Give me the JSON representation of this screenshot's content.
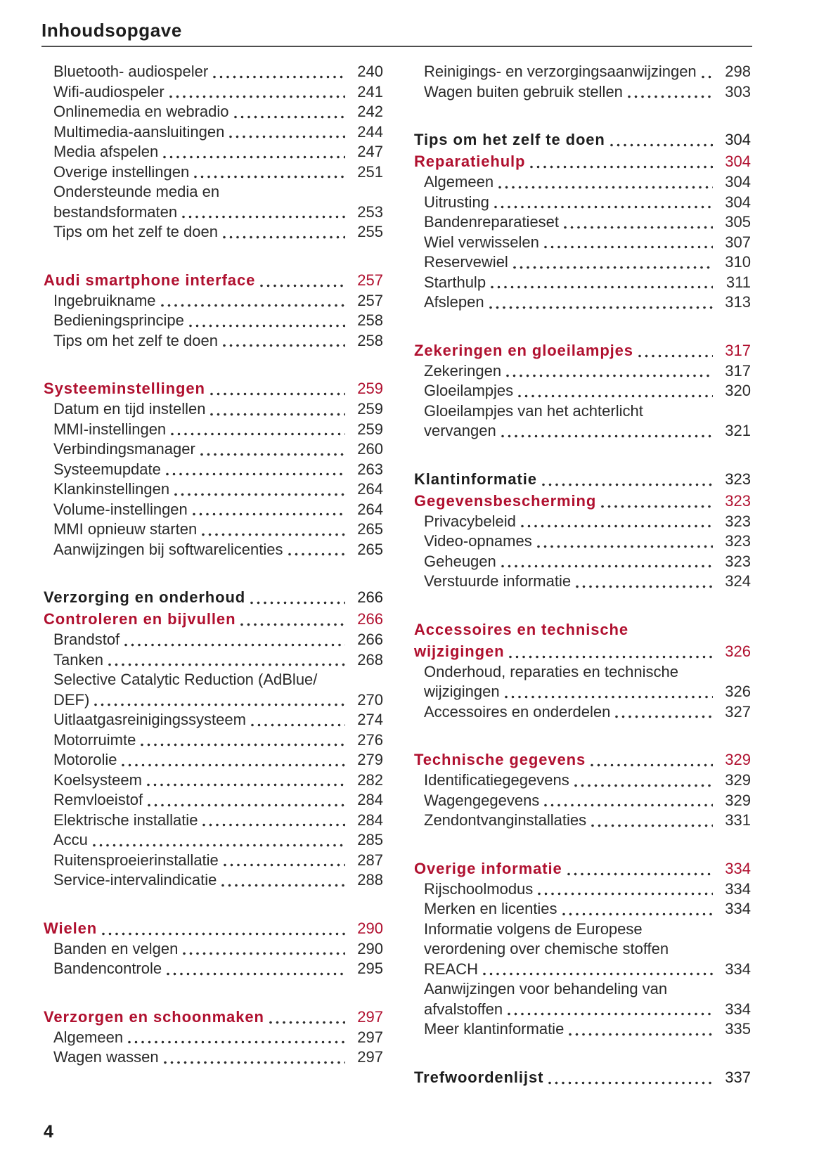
{
  "page": {
    "title": "Inhoudsopgave",
    "page_number": "4"
  },
  "colors": {
    "accent_red": "#B0102F",
    "body_text": "#2a2a2a",
    "heading_black": "#1d1d1d",
    "rule": "#4e4e4e"
  },
  "toc": {
    "left_column": [
      {
        "entries": [
          {
            "style": "sub",
            "lines": [
              "Bluetooth- audiospeler"
            ],
            "page": "240"
          },
          {
            "style": "sub",
            "lines": [
              "Wifi-audiospeler"
            ],
            "page": "241"
          },
          {
            "style": "sub",
            "lines": [
              "Onlinemedia en webradio"
            ],
            "page": "242"
          },
          {
            "style": "sub",
            "lines": [
              "Multimedia-aansluitingen"
            ],
            "page": "244"
          },
          {
            "style": "sub",
            "lines": [
              "Media afspelen"
            ],
            "page": "247"
          },
          {
            "style": "sub",
            "lines": [
              "Overige instellingen"
            ],
            "page": "251"
          },
          {
            "style": "sub",
            "lines": [
              "Ondersteunde media en",
              "bestandsformaten"
            ],
            "page": "253"
          },
          {
            "style": "sub",
            "lines": [
              "Tips om het zelf te doen"
            ],
            "page": "255"
          }
        ]
      },
      {
        "entries": [
          {
            "style": "chapter",
            "lines": [
              "Audi smartphone interface"
            ],
            "page": "257"
          },
          {
            "style": "sub",
            "lines": [
              "Ingebruikname"
            ],
            "page": "257"
          },
          {
            "style": "sub",
            "lines": [
              "Bedieningsprincipe"
            ],
            "page": "258"
          },
          {
            "style": "sub",
            "lines": [
              "Tips om het zelf te doen"
            ],
            "page": "258"
          }
        ]
      },
      {
        "entries": [
          {
            "style": "chapter",
            "lines": [
              "Systeeminstellingen"
            ],
            "page": "259"
          },
          {
            "style": "sub",
            "lines": [
              "Datum en tijd instellen"
            ],
            "page": "259"
          },
          {
            "style": "sub",
            "lines": [
              "MMI-instellingen"
            ],
            "page": "259"
          },
          {
            "style": "sub",
            "lines": [
              "Verbindingsmanager"
            ],
            "page": "260"
          },
          {
            "style": "sub",
            "lines": [
              "Systeemupdate"
            ],
            "page": "263"
          },
          {
            "style": "sub",
            "lines": [
              "Klankinstellingen"
            ],
            "page": "264"
          },
          {
            "style": "sub",
            "lines": [
              "Volume-instellingen"
            ],
            "page": "264"
          },
          {
            "style": "sub",
            "lines": [
              "MMI opnieuw starten"
            ],
            "page": "265"
          },
          {
            "style": "sub",
            "lines": [
              "Aanwijzingen bij softwarelicenties"
            ],
            "page": "265"
          }
        ]
      },
      {
        "entries": [
          {
            "style": "part",
            "lines": [
              "Verzorging en onderhoud"
            ],
            "page": "266"
          },
          {
            "style": "chapter",
            "lines": [
              "Controleren en bijvullen"
            ],
            "page": "266"
          },
          {
            "style": "sub",
            "lines": [
              "Brandstof"
            ],
            "page": "266"
          },
          {
            "style": "sub",
            "lines": [
              "Tanken"
            ],
            "page": "268"
          },
          {
            "style": "sub",
            "lines": [
              "Selective Catalytic Reduction (AdBlue/",
              "DEF)"
            ],
            "page": "270"
          },
          {
            "style": "sub",
            "lines": [
              "Uitlaatgasreinigingssysteem"
            ],
            "page": "274"
          },
          {
            "style": "sub",
            "lines": [
              "Motorruimte"
            ],
            "page": "276"
          },
          {
            "style": "sub",
            "lines": [
              "Motorolie"
            ],
            "page": "279"
          },
          {
            "style": "sub",
            "lines": [
              "Koelsysteem"
            ],
            "page": "282"
          },
          {
            "style": "sub",
            "lines": [
              "Remvloeistof"
            ],
            "page": "284"
          },
          {
            "style": "sub",
            "lines": [
              "Elektrische installatie"
            ],
            "page": "284"
          },
          {
            "style": "sub",
            "lines": [
              "Accu"
            ],
            "page": "285"
          },
          {
            "style": "sub",
            "lines": [
              "Ruitensproeierinstallatie"
            ],
            "page": "287"
          },
          {
            "style": "sub",
            "lines": [
              "Service-intervalindicatie"
            ],
            "page": "288"
          }
        ]
      },
      {
        "entries": [
          {
            "style": "chapter",
            "lines": [
              "Wielen"
            ],
            "page": "290"
          },
          {
            "style": "sub",
            "lines": [
              "Banden en velgen"
            ],
            "page": "290"
          },
          {
            "style": "sub",
            "lines": [
              "Bandencontrole"
            ],
            "page": "295"
          }
        ]
      },
      {
        "entries": [
          {
            "style": "chapter",
            "lines": [
              "Verzorgen en schoonmaken"
            ],
            "page": "297"
          },
          {
            "style": "sub",
            "lines": [
              "Algemeen"
            ],
            "page": "297"
          },
          {
            "style": "sub",
            "lines": [
              "Wagen wassen"
            ],
            "page": "297"
          }
        ]
      }
    ],
    "right_column": [
      {
        "entries": [
          {
            "style": "sub",
            "lines": [
              "Reinigings- en verzorgingsaanwijzingen"
            ],
            "page": "298"
          },
          {
            "style": "sub",
            "lines": [
              "Wagen buiten gebruik stellen"
            ],
            "page": "303"
          }
        ]
      },
      {
        "entries": [
          {
            "style": "part",
            "lines": [
              "Tips om het zelf te doen"
            ],
            "page": "304"
          },
          {
            "style": "chapter",
            "lines": [
              "Reparatiehulp"
            ],
            "page": "304"
          },
          {
            "style": "sub",
            "lines": [
              "Algemeen"
            ],
            "page": "304"
          },
          {
            "style": "sub",
            "lines": [
              "Uitrusting"
            ],
            "page": "304"
          },
          {
            "style": "sub",
            "lines": [
              "Bandenreparatieset"
            ],
            "page": "305"
          },
          {
            "style": "sub",
            "lines": [
              "Wiel verwisselen"
            ],
            "page": "307"
          },
          {
            "style": "sub",
            "lines": [
              "Reservewiel"
            ],
            "page": "310"
          },
          {
            "style": "sub",
            "lines": [
              "Starthulp"
            ],
            "page": "311"
          },
          {
            "style": "sub",
            "lines": [
              "Afslepen"
            ],
            "page": "313"
          }
        ]
      },
      {
        "entries": [
          {
            "style": "chapter",
            "lines": [
              "Zekeringen en gloeilampjes"
            ],
            "page": "317"
          },
          {
            "style": "sub",
            "lines": [
              "Zekeringen"
            ],
            "page": "317"
          },
          {
            "style": "sub",
            "lines": [
              "Gloeilampjes"
            ],
            "page": "320"
          },
          {
            "style": "sub",
            "lines": [
              "Gloeilampjes van het achterlicht",
              "vervangen"
            ],
            "page": "321"
          }
        ]
      },
      {
        "entries": [
          {
            "style": "part",
            "lines": [
              "Klantinformatie"
            ],
            "page": "323"
          },
          {
            "style": "chapter",
            "lines": [
              "Gegevensbescherming"
            ],
            "page": "323"
          },
          {
            "style": "sub",
            "lines": [
              "Privacybeleid"
            ],
            "page": "323"
          },
          {
            "style": "sub",
            "lines": [
              "Video-opnames"
            ],
            "page": "323"
          },
          {
            "style": "sub",
            "lines": [
              "Geheugen"
            ],
            "page": "323"
          },
          {
            "style": "sub",
            "lines": [
              "Verstuurde informatie"
            ],
            "page": "324"
          }
        ]
      },
      {
        "entries": [
          {
            "style": "chapter",
            "lines": [
              "Accessoires en technische",
              "wijzigingen"
            ],
            "page": "326"
          },
          {
            "style": "sub",
            "lines": [
              "Onderhoud, reparaties en technische",
              "wijzigingen"
            ],
            "page": "326"
          },
          {
            "style": "sub",
            "lines": [
              "Accessoires en onderdelen"
            ],
            "page": "327"
          }
        ]
      },
      {
        "entries": [
          {
            "style": "chapter",
            "lines": [
              "Technische gegevens"
            ],
            "page": "329"
          },
          {
            "style": "sub",
            "lines": [
              "Identificatiegegevens"
            ],
            "page": "329"
          },
          {
            "style": "sub",
            "lines": [
              "Wagengegevens"
            ],
            "page": "329"
          },
          {
            "style": "sub",
            "lines": [
              "Zendontvanginstallaties"
            ],
            "page": "331"
          }
        ]
      },
      {
        "entries": [
          {
            "style": "chapter",
            "lines": [
              "Overige informatie"
            ],
            "page": "334"
          },
          {
            "style": "sub",
            "lines": [
              "Rijschoolmodus"
            ],
            "page": "334"
          },
          {
            "style": "sub",
            "lines": [
              "Merken en licenties"
            ],
            "page": "334"
          },
          {
            "style": "sub",
            "lines": [
              "Informatie volgens de Europese",
              "verordening over chemische stoffen",
              "REACH"
            ],
            "page": "334"
          },
          {
            "style": "sub",
            "lines": [
              "Aanwijzingen voor behandeling van",
              "afvalstoffen"
            ],
            "page": "334"
          },
          {
            "style": "sub",
            "lines": [
              "Meer klantinformatie"
            ],
            "page": "335"
          }
        ]
      },
      {
        "entries": [
          {
            "style": "part",
            "lines": [
              "Trefwoordenlijst"
            ],
            "page": "337"
          }
        ]
      }
    ]
  }
}
